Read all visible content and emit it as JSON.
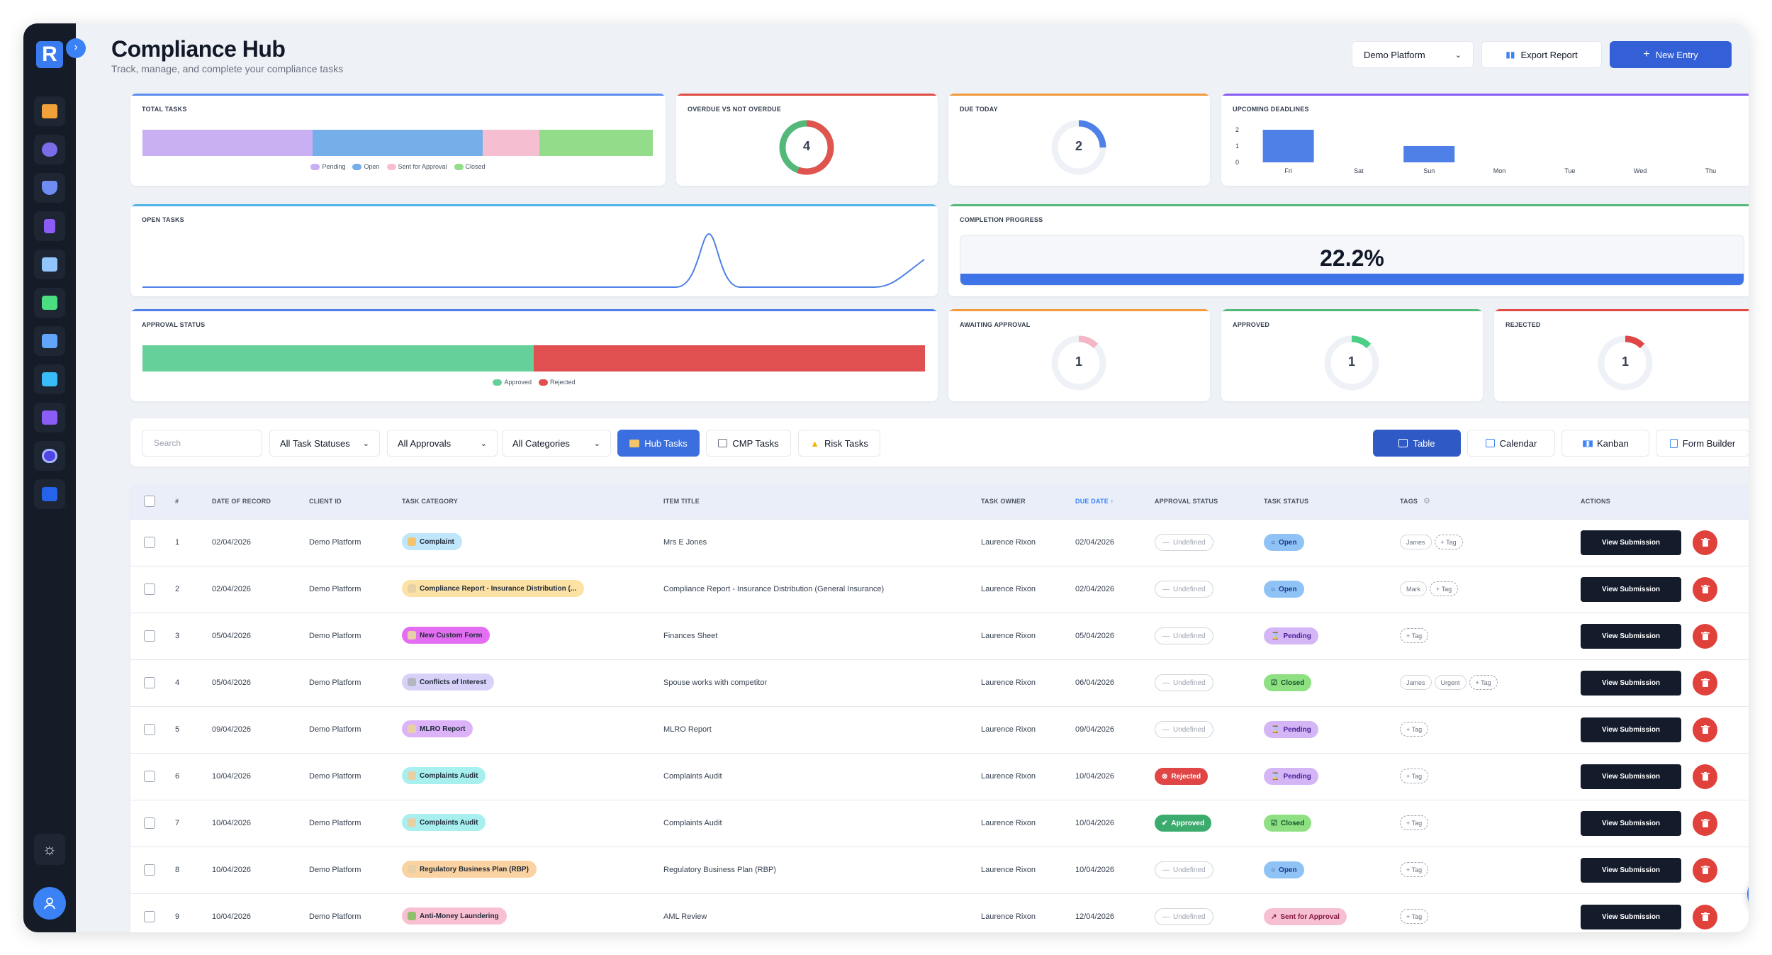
{
  "app": {
    "logo_letter": "R",
    "title": "Compliance Hub",
    "subtitle": "Track, manage, and complete your compliance tasks"
  },
  "header": {
    "platform_select": "Demo Platform",
    "export_label": "Export Report",
    "new_entry_label": "New Entry"
  },
  "sidebar": {
    "items": [
      "building-icon",
      "users-icon",
      "shield-icon",
      "document-icon",
      "dashboard-icon",
      "folder-icon",
      "chart-icon",
      "form-icon",
      "list-icon",
      "target-icon",
      "monitor-icon"
    ]
  },
  "cards": {
    "total_tasks": {
      "title": "TOTAL TASKS",
      "legend": [
        "Pending",
        "Open",
        "Sent for Approval",
        "Closed"
      ],
      "values": [
        3,
        3,
        1,
        2
      ],
      "colors": [
        "#c9b0f3",
        "#76aeea",
        "#f6bfd1",
        "#93dc89"
      ]
    },
    "overdue": {
      "title": "OVERDUE VS NOT OVERDUE",
      "value": "4",
      "overdue": 5,
      "not_overdue": 4
    },
    "due_today": {
      "title": "DUE TODAY",
      "value": "2"
    },
    "upcoming": {
      "title": "UPCOMING DEADLINES",
      "y_ticks": [
        "2",
        "1",
        "0"
      ],
      "days": [
        "Fri",
        "Sat",
        "Sun",
        "Mon",
        "Tue",
        "Wed",
        "Thu"
      ],
      "values": [
        2,
        0,
        1,
        0,
        0,
        0,
        0
      ]
    },
    "open_tasks": {
      "title": "OPEN TASKS"
    },
    "completion": {
      "title": "COMPLETION PROGRESS",
      "value": "22.2%",
      "fraction": 0.222
    },
    "approval_status": {
      "title": "APPROVAL STATUS",
      "legend": [
        "Approved",
        "Rejected"
      ],
      "values": [
        1,
        1
      ],
      "colors": [
        "#66d09a",
        "#e05050"
      ]
    },
    "awaiting": {
      "title": "AWAITING APPROVAL",
      "value": "1",
      "color": "#f4b7c8"
    },
    "approved": {
      "title": "APPROVED",
      "value": "1",
      "color": "#4ccf84"
    },
    "rejected": {
      "title": "REJECTED",
      "value": "1",
      "color": "#e04646"
    }
  },
  "filters": {
    "search_placeholder": "Search",
    "statuses": "All Task Statuses",
    "approvals": "All Approvals",
    "categories": "All Categories",
    "hub": "Hub Tasks",
    "cmp": "CMP Tasks",
    "risk": "Risk Tasks",
    "views": [
      "Table",
      "Calendar",
      "Kanban",
      "Form Builder"
    ]
  },
  "table": {
    "headers": [
      "#",
      "DATE OF RECORD",
      "CLIENT ID",
      "TASK CATEGORY",
      "ITEM TITLE",
      "TASK OWNER",
      "DUE DATE ↑",
      "APPROVAL STATUS",
      "TASK STATUS",
      "TAGS",
      "ACTIONS"
    ],
    "view_label": "View Submission",
    "rows": [
      {
        "n": "1",
        "date": "02/04/2026",
        "client": "Demo Platform",
        "category": "Complaint",
        "cat_bg": "#bfe6fb",
        "cat_ic": "#f4c56c",
        "title": "Mrs E Jones",
        "owner": "Laurence Rixon",
        "due": "02/04/2026",
        "approval": "Undefined",
        "status": "Open",
        "tags": [
          "James",
          "+ Tag"
        ]
      },
      {
        "n": "2",
        "date": "02/04/2026",
        "client": "Demo Platform",
        "category": "Compliance Report - Insurance Distribution (...",
        "cat_bg": "#fde2a6",
        "cat_ic": "#e8d0a6",
        "title": "Compliance Report - Insurance Distribution (General Insurance)",
        "owner": "Laurence Rixon",
        "due": "02/04/2026",
        "approval": "Undefined",
        "status": "Open",
        "tags": [
          "Mark",
          "+ Tag"
        ]
      },
      {
        "n": "3",
        "date": "05/04/2026",
        "client": "Demo Platform",
        "category": "New Custom Form",
        "cat_bg": "#e46ef2",
        "cat_ic": "#e8d0a6",
        "title": "Finances Sheet",
        "owner": "Laurence Rixon",
        "due": "05/04/2026",
        "approval": "Undefined",
        "status": "Pending",
        "tags": [
          "+ Tag"
        ]
      },
      {
        "n": "4",
        "date": "05/04/2026",
        "client": "Demo Platform",
        "category": "Conflicts of Interest",
        "cat_bg": "#d8d2f8",
        "cat_ic": "#b3b7c4",
        "title": "Spouse works with competitor",
        "owner": "Laurence Rixon",
        "due": "06/04/2026",
        "approval": "Undefined",
        "status": "Closed",
        "tags": [
          "James",
          "Urgent",
          "+ Tag"
        ]
      },
      {
        "n": "5",
        "date": "09/04/2026",
        "client": "Demo Platform",
        "category": "MLRO Report",
        "cat_bg": "#dcb3f8",
        "cat_ic": "#e8d0a6",
        "title": "MLRO Report",
        "owner": "Laurence Rixon",
        "due": "09/04/2026",
        "approval": "Undefined",
        "status": "Pending",
        "tags": [
          "+ Tag"
        ]
      },
      {
        "n": "6",
        "date": "10/04/2026",
        "client": "Demo Platform",
        "category": "Complaints Audit",
        "cat_bg": "#a7f0ef",
        "cat_ic": "#e8d0a6",
        "title": "Complaints Audit",
        "owner": "Laurence Rixon",
        "due": "10/04/2026",
        "approval": "Rejected",
        "status": "Pending",
        "tags": [
          "+ Tag"
        ]
      },
      {
        "n": "7",
        "date": "10/04/2026",
        "client": "Demo Platform",
        "category": "Complaints Audit",
        "cat_bg": "#a7f0ef",
        "cat_ic": "#e8d0a6",
        "title": "Complaints Audit",
        "owner": "Laurence Rixon",
        "due": "10/04/2026",
        "approval": "Approved",
        "status": "Closed",
        "tags": [
          "+ Tag"
        ]
      },
      {
        "n": "8",
        "date": "10/04/2026",
        "client": "Demo Platform",
        "category": "Regulatory Business Plan (RBP)",
        "cat_bg": "#fbd3a2",
        "cat_ic": "#e8d0a6",
        "title": "Regulatory Business Plan (RBP)",
        "owner": "Laurence Rixon",
        "due": "10/04/2026",
        "approval": "Undefined",
        "status": "Open",
        "tags": [
          "+ Tag"
        ]
      },
      {
        "n": "9",
        "date": "10/04/2026",
        "client": "Demo Platform",
        "category": "Anti-Money Laundering",
        "cat_bg": "#f9c0d2",
        "cat_ic": "#8fc06e",
        "title": "AML Review",
        "owner": "Laurence Rixon",
        "due": "12/04/2026",
        "approval": "Undefined",
        "status": "Sent for Approval",
        "tags": [
          "+ Tag"
        ]
      }
    ]
  }
}
